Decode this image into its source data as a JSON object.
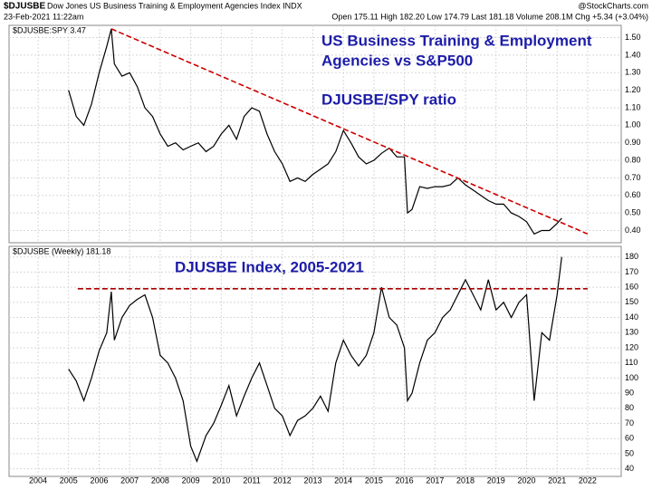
{
  "header": {
    "symbol": "$DJUSBE",
    "name": "Dow Jones US Business Training & Employment Agencies Index INDX",
    "source": "@StockCharts.com",
    "date": "23-Feb-2021 11:22am",
    "quote": "Open 175.11 High 182.20 Low 174.79 Last 181.18 Volume 208.1M Chg +5.34 (+3.04%)"
  },
  "chart_data": [
    {
      "type": "line",
      "annotations": [
        "US Business Training & Employment",
        "Agencies vs S&P500",
        "DJUSBE/SPY ratio"
      ],
      "xlim": [
        2003.05,
        2023.1
      ],
      "ylim": [
        0.33,
        1.57
      ],
      "grid": true,
      "yticks": [
        {
          "value": 0.4,
          "label": "0.40"
        },
        {
          "value": 0.5,
          "label": "0.50"
        },
        {
          "value": 0.6,
          "label": "0.60"
        },
        {
          "value": 0.7,
          "label": "0.70"
        },
        {
          "value": 0.8,
          "label": "0.80"
        },
        {
          "value": 0.9,
          "label": "0.90"
        },
        {
          "value": 1.0,
          "label": "1.00"
        },
        {
          "value": 1.1,
          "label": "1.10"
        },
        {
          "value": 1.2,
          "label": "1.20"
        },
        {
          "value": 1.3,
          "label": "1.30"
        },
        {
          "value": 1.4,
          "label": "1.40"
        },
        {
          "value": 1.5,
          "label": "1.50"
        }
      ],
      "x": [
        2005.0,
        2005.25,
        2005.5,
        2005.75,
        2006.0,
        2006.25,
        2006.4,
        2006.5,
        2006.75,
        2007.0,
        2007.25,
        2007.5,
        2007.75,
        2008.0,
        2008.25,
        2008.5,
        2008.75,
        2009.0,
        2009.25,
        2009.5,
        2009.75,
        2010.0,
        2010.25,
        2010.5,
        2010.75,
        2011.0,
        2011.25,
        2011.5,
        2011.75,
        2012.0,
        2012.25,
        2012.5,
        2012.75,
        2013.0,
        2013.25,
        2013.5,
        2013.75,
        2014.0,
        2014.25,
        2014.5,
        2014.75,
        2015.0,
        2015.25,
        2015.5,
        2015.75,
        2016.0,
        2016.1,
        2016.25,
        2016.5,
        2016.75,
        2017.0,
        2017.25,
        2017.5,
        2017.75,
        2018.0,
        2018.25,
        2018.5,
        2018.75,
        2019.0,
        2019.25,
        2019.5,
        2019.75,
        2020.0,
        2020.25,
        2020.5,
        2020.75,
        2021.0,
        2021.15
      ],
      "series": [
        {
          "name": "$DJUSBE:SPY 3.47",
          "color": "#000000",
          "values": [
            1.2,
            1.05,
            1.0,
            1.12,
            1.3,
            1.45,
            1.55,
            1.35,
            1.28,
            1.3,
            1.22,
            1.1,
            1.05,
            0.95,
            0.88,
            0.9,
            0.86,
            0.88,
            0.9,
            0.85,
            0.88,
            0.95,
            1.0,
            0.92,
            1.05,
            1.1,
            1.08,
            0.95,
            0.85,
            0.78,
            0.68,
            0.7,
            0.68,
            0.72,
            0.75,
            0.78,
            0.85,
            0.97,
            0.9,
            0.82,
            0.78,
            0.8,
            0.84,
            0.87,
            0.82,
            0.82,
            0.5,
            0.52,
            0.65,
            0.64,
            0.65,
            0.65,
            0.66,
            0.7,
            0.66,
            0.63,
            0.6,
            0.57,
            0.55,
            0.55,
            0.5,
            0.48,
            0.45,
            0.38,
            0.4,
            0.4,
            0.44,
            0.47
          ]
        }
      ],
      "trendline": {
        "color": "#cc0000",
        "x": [
          2006.4,
          2022.0
        ],
        "values": [
          1.55,
          0.38
        ]
      }
    },
    {
      "type": "line",
      "annotations": [
        "DJUSBE Index, 2005-2021"
      ],
      "xlim": [
        2003.05,
        2023.1
      ],
      "ylim": [
        35,
        187
      ],
      "grid": true,
      "yticks": [
        40,
        50,
        60,
        70,
        80,
        90,
        100,
        110,
        120,
        130,
        140,
        150,
        160,
        170,
        180
      ],
      "xticks": [
        2004,
        2005,
        2006,
        2007,
        2008,
        2009,
        2010,
        2011,
        2012,
        2013,
        2014,
        2015,
        2016,
        2017,
        2018,
        2019,
        2020,
        2021,
        2022
      ],
      "x": [
        2005.0,
        2005.25,
        2005.5,
        2005.75,
        2006.0,
        2006.25,
        2006.4,
        2006.5,
        2006.75,
        2007.0,
        2007.25,
        2007.5,
        2007.75,
        2008.0,
        2008.25,
        2008.5,
        2008.75,
        2009.0,
        2009.2,
        2009.5,
        2009.75,
        2010.0,
        2010.25,
        2010.5,
        2010.75,
        2011.0,
        2011.25,
        2011.5,
        2011.75,
        2012.0,
        2012.25,
        2012.5,
        2012.75,
        2013.0,
        2013.25,
        2013.5,
        2013.75,
        2014.0,
        2014.25,
        2014.5,
        2014.75,
        2015.0,
        2015.25,
        2015.5,
        2015.75,
        2016.0,
        2016.1,
        2016.25,
        2016.5,
        2016.75,
        2017.0,
        2017.25,
        2017.5,
        2017.75,
        2018.0,
        2018.25,
        2018.5,
        2018.75,
        2019.0,
        2019.25,
        2019.5,
        2019.75,
        2020.0,
        2020.25,
        2020.5,
        2020.75,
        2021.0,
        2021.15
      ],
      "series": [
        {
          "name": "$DJUSBE (Weekly) 181.18",
          "color": "#000000",
          "values": [
            106,
            98,
            85,
            100,
            118,
            130,
            157,
            125,
            140,
            148,
            152,
            155,
            140,
            115,
            110,
            100,
            85,
            55,
            45,
            62,
            70,
            82,
            95,
            75,
            88,
            100,
            110,
            95,
            80,
            75,
            62,
            72,
            75,
            80,
            88,
            78,
            110,
            125,
            115,
            108,
            115,
            130,
            160,
            140,
            135,
            120,
            85,
            90,
            110,
            125,
            130,
            140,
            145,
            155,
            165,
            155,
            145,
            165,
            145,
            150,
            140,
            150,
            155,
            85,
            130,
            125,
            155,
            180
          ]
        }
      ],
      "trendline": {
        "color": "#aa0000",
        "x": [
          2005.3,
          2022.0
        ],
        "values": [
          159,
          159
        ]
      }
    }
  ]
}
